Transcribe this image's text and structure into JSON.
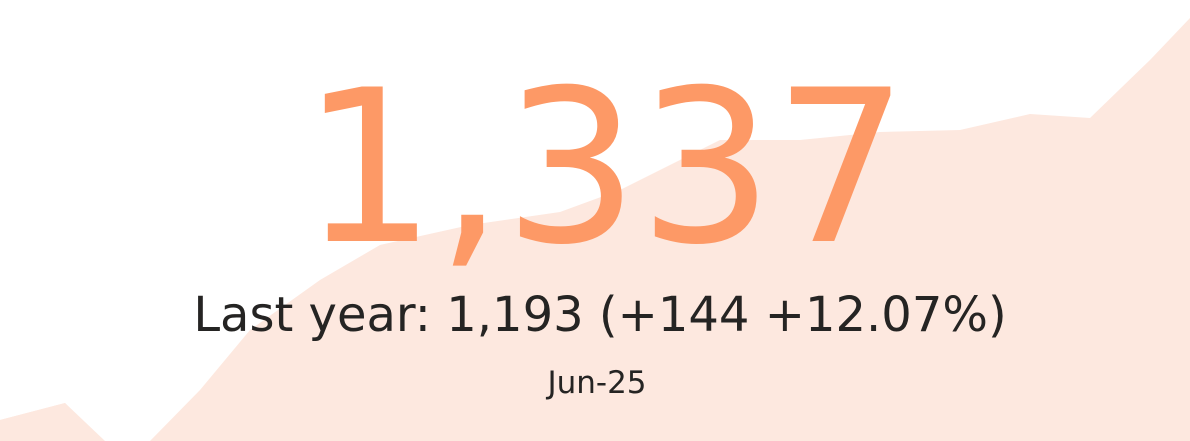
{
  "kpi": {
    "value": "1,337",
    "comparison": "Last year: 1,193 (+144 +12.07%)",
    "period": "Jun-25"
  }
}
